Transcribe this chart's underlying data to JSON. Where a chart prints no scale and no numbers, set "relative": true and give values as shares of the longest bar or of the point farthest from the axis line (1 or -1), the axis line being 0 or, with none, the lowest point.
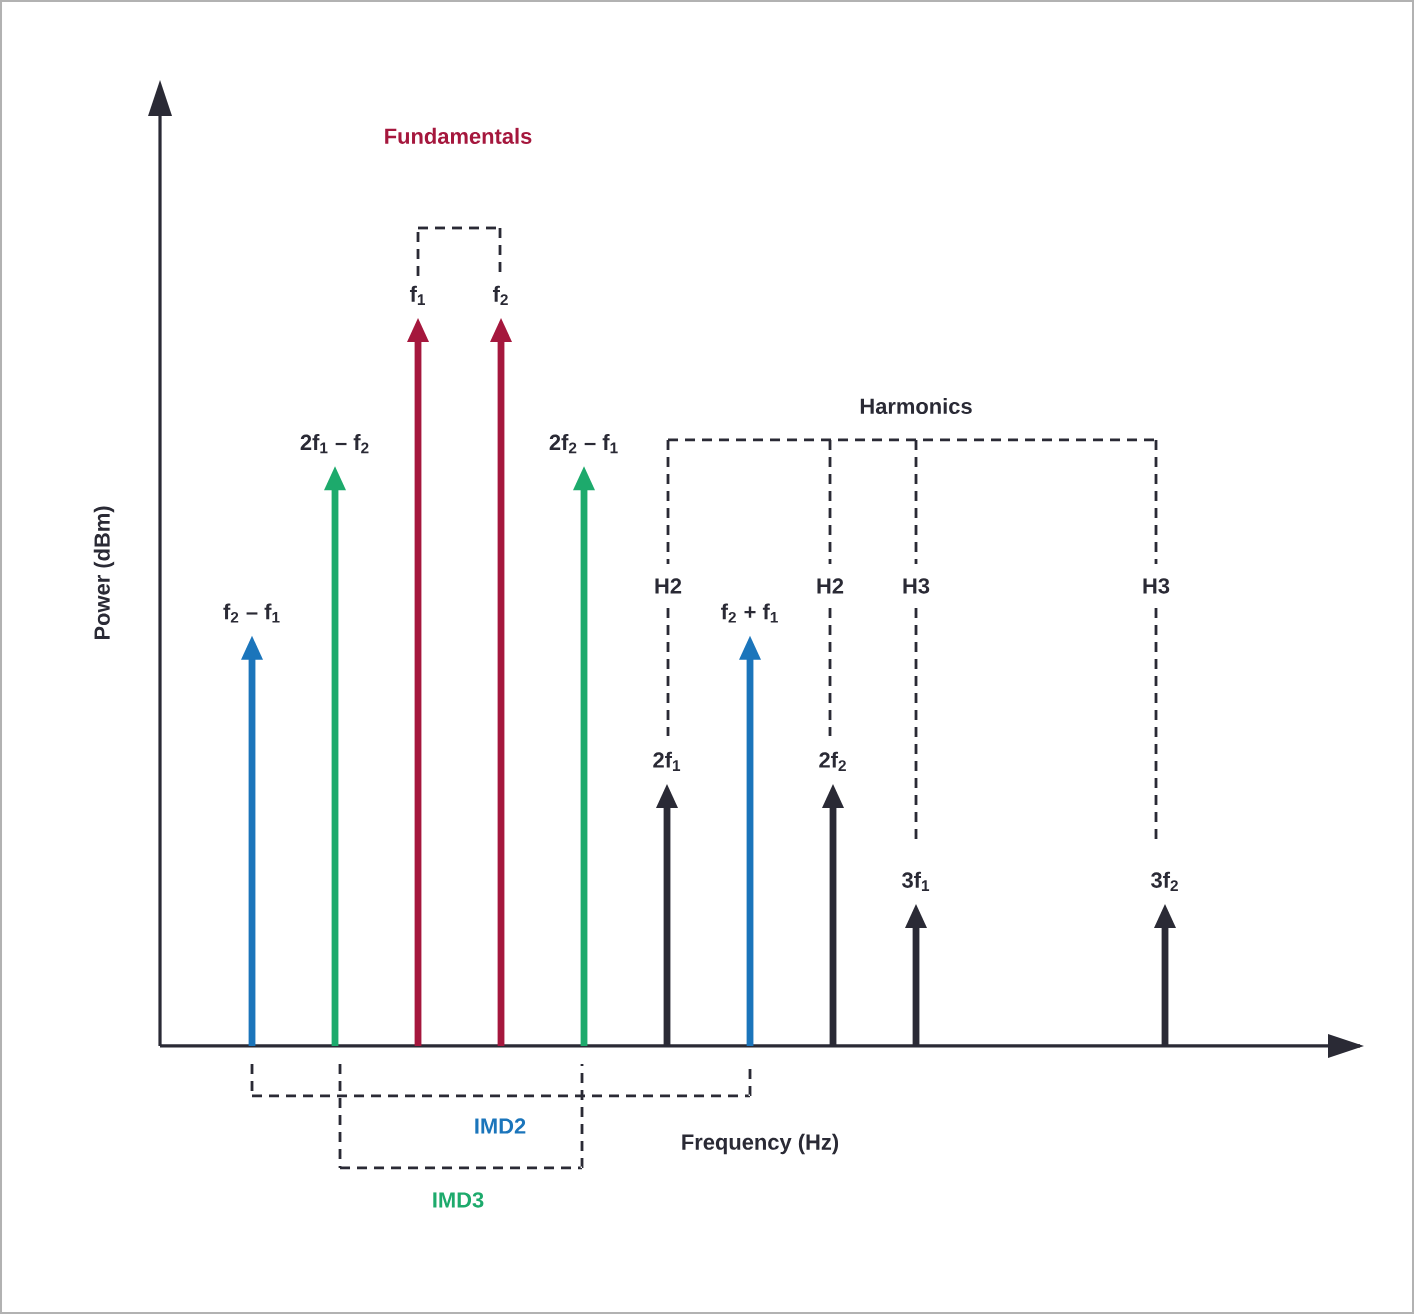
{
  "chart_data": {
    "type": "bar",
    "relative": true,
    "xlabel": "Frequency (Hz)",
    "ylabel": "Power (dBm)",
    "categories": [
      "f$_{2}$ – f$_{1}$",
      "2f$_{1}$ – f$_{2}$",
      "f$_{1}$",
      "f$_{2}$",
      "2f$_{2}$ – f$_{1}$",
      "2f$_{1}$",
      "f$_{2}$ + f$_{1}$",
      "2f$_{2}$",
      "3f$_{1}$",
      null,
      null,
      "3f$_{2}$"
    ],
    "values": [
      0.55,
      0.79,
      1,
      1,
      0.79,
      0.34,
      0.55,
      0.34,
      0.17,
      null,
      null,
      0.17
    ],
    "colors": [
      "#1b75bb",
      "#1daa6c",
      "#a5173d",
      "#a5173d",
      "#1daa6c",
      "#2a2a35",
      "#1b75bb",
      "#2a2a35",
      "#2a2a35",
      "#2a2a35",
      "#2a2a35",
      "#2a2a35"
    ],
    "annotations": [
      "Fundamentals",
      "Harmonics",
      "H2",
      "H2",
      "H3",
      "H3",
      "IMD2",
      "IMD3"
    ]
  }
}
